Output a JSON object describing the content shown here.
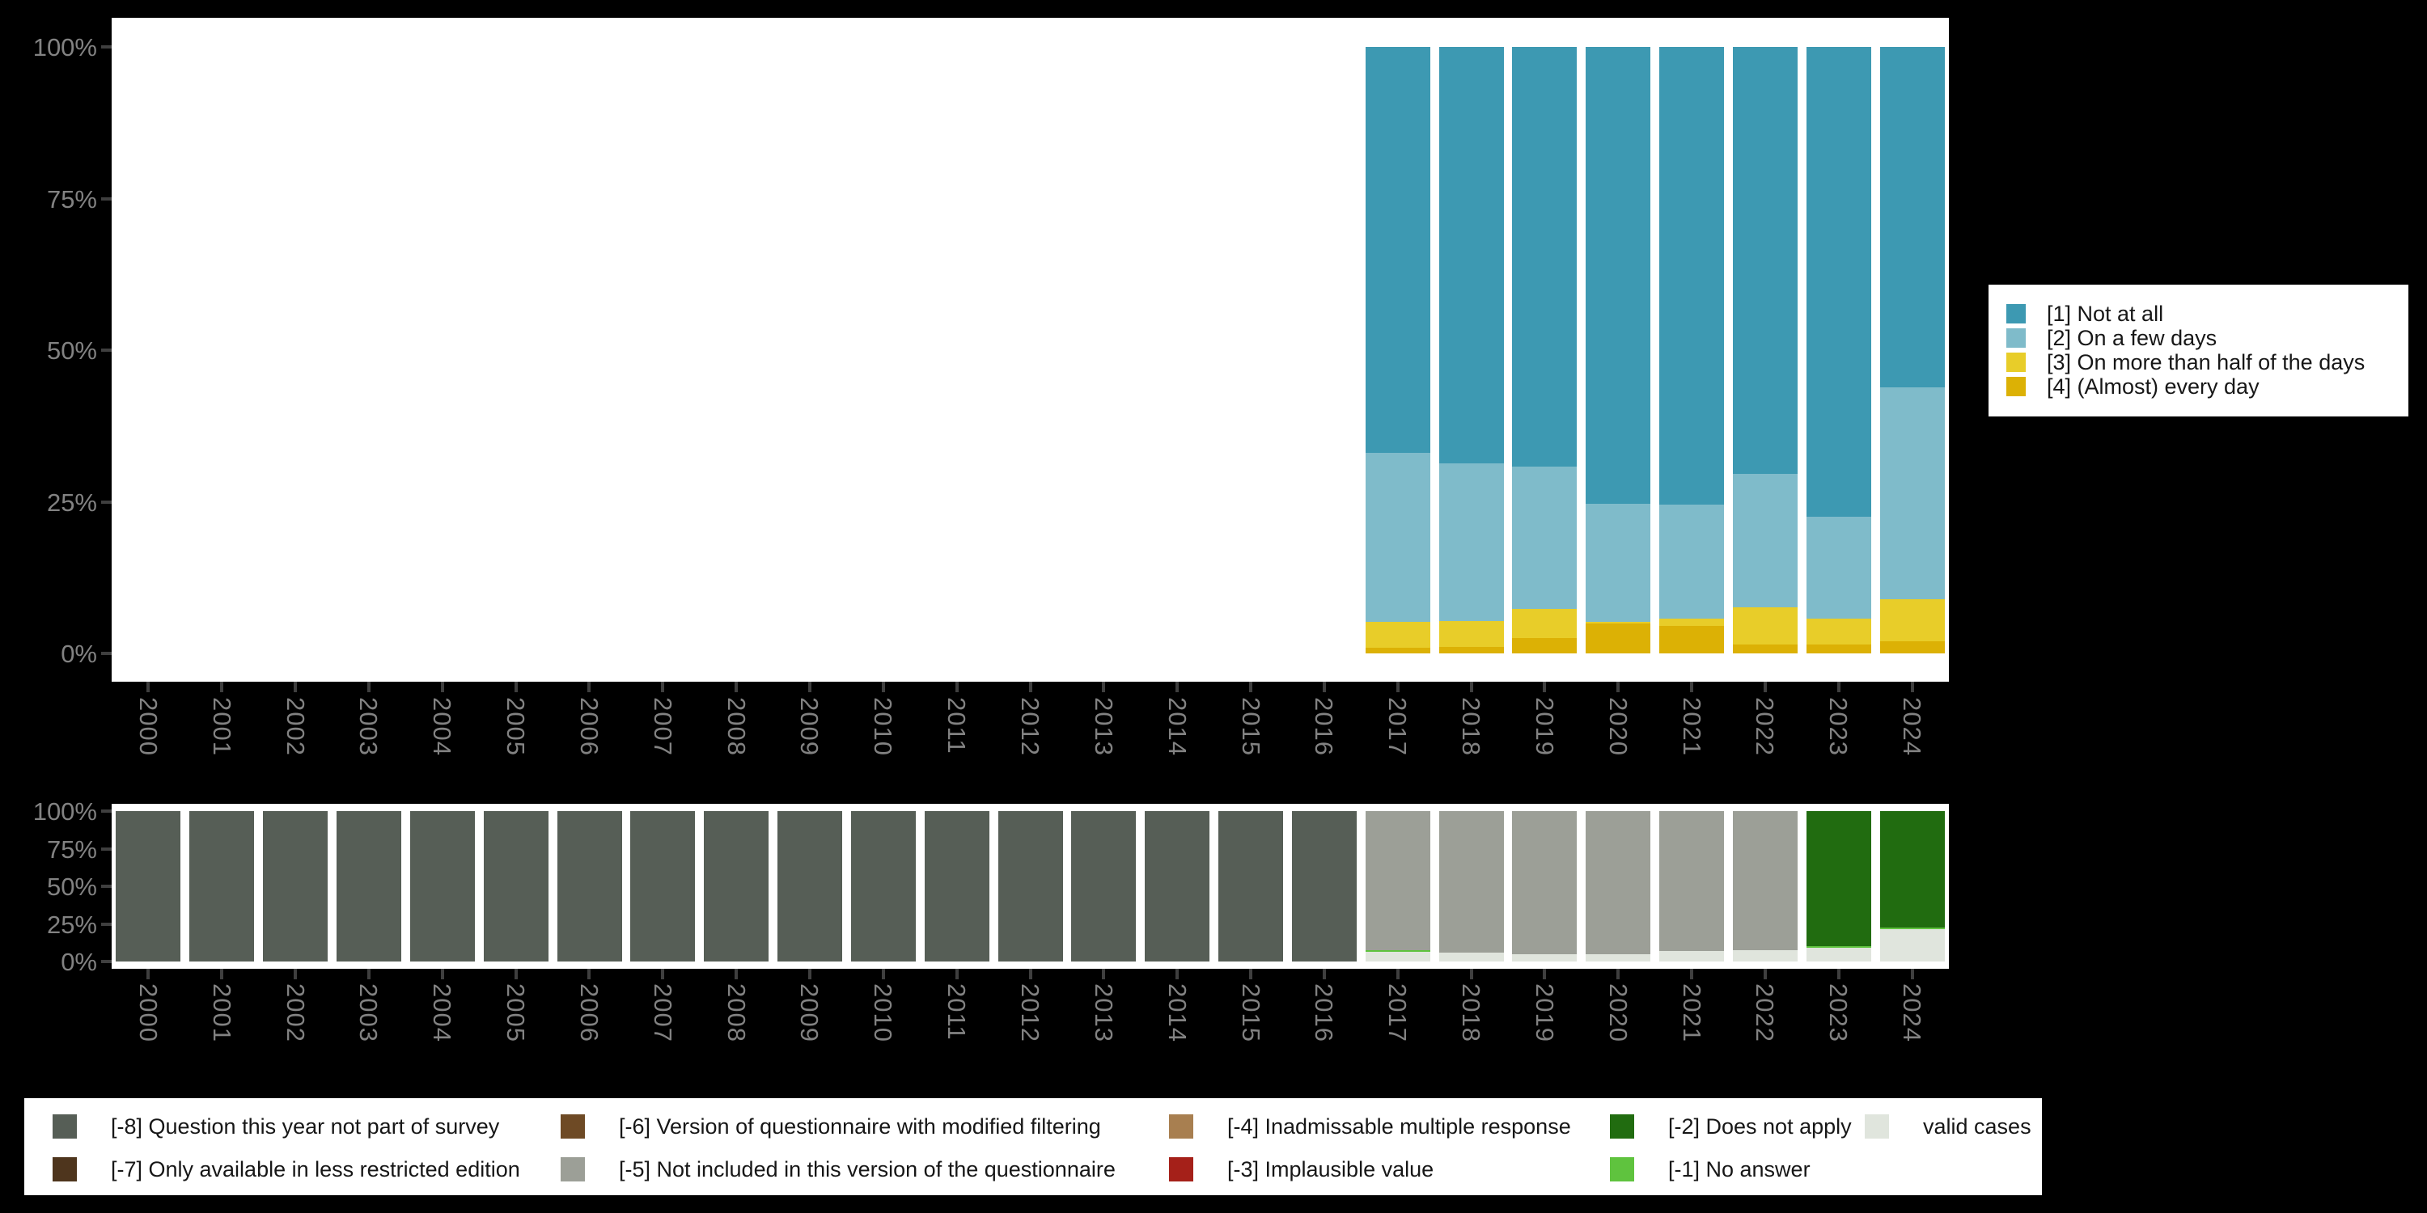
{
  "page": {
    "background": "#000000"
  },
  "years": [
    "2000",
    "2001",
    "2002",
    "2003",
    "2004",
    "2005",
    "2006",
    "2007",
    "2008",
    "2009",
    "2010",
    "2011",
    "2012",
    "2013",
    "2014",
    "2015",
    "2016",
    "2017",
    "2018",
    "2019",
    "2020",
    "2021",
    "2022",
    "2023",
    "2024"
  ],
  "y_axis_ticks": [
    "100%",
    "75%",
    "50%",
    "25%",
    "0%"
  ],
  "colors": {
    "not_at_all": "#3d99b2",
    "few_days": "#7fbbca",
    "half_days": "#e8cd29",
    "every_day": "#dcb105",
    "m8_not_part_of_survey": "#565e56",
    "m7_less_restricted": "#4e351d",
    "m6_modified_filtering": "#6e4a25",
    "m5_not_in_version": "#9c9f97",
    "m4_inadmissable": "#a87f50",
    "m3_implausible": "#a52019",
    "m2_does_not_apply": "#216c10",
    "m1_no_answer": "#5fc33e",
    "valid_cases": "#e0e5dd",
    "axis_label": "#828282",
    "tick": "#3f3f3f"
  },
  "chart_data": [
    {
      "type": "bar",
      "stacked": true,
      "title": "",
      "xlabel": "",
      "ylabel": "",
      "ylim": [
        0,
        100
      ],
      "grid": false,
      "legend_position": "right",
      "y_tick_labels": [
        "100%",
        "75%",
        "50%",
        "25%",
        "0%"
      ],
      "categories": [
        "2000",
        "2001",
        "2002",
        "2003",
        "2004",
        "2005",
        "2006",
        "2007",
        "2008",
        "2009",
        "2010",
        "2011",
        "2012",
        "2013",
        "2014",
        "2015",
        "2016",
        "2017",
        "2018",
        "2019",
        "2020",
        "2021",
        "2022",
        "2023",
        "2024"
      ],
      "series": [
        {
          "name": "[1] Not at all",
          "color": "#3d99b2",
          "values": [
            0,
            0,
            0,
            0,
            0,
            0,
            0,
            0,
            0,
            0,
            0,
            0,
            0,
            0,
            0,
            0,
            0,
            66.9,
            68.6,
            69.2,
            75.3,
            75.5,
            70.4,
            77.4,
            56.1
          ]
        },
        {
          "name": "[2] On a few days",
          "color": "#7fbbca",
          "values": [
            0,
            0,
            0,
            0,
            0,
            0,
            0,
            0,
            0,
            0,
            0,
            0,
            0,
            0,
            0,
            0,
            0,
            27.9,
            26.1,
            23.5,
            19.5,
            18.8,
            22.0,
            16.9,
            35.0
          ]
        },
        {
          "name": "[3] On more than half of the days",
          "color": "#e8cd29",
          "values": [
            0,
            0,
            0,
            0,
            0,
            0,
            0,
            0,
            0,
            0,
            0,
            0,
            0,
            0,
            0,
            0,
            0,
            4.3,
            4.2,
            4.8,
            0.2,
            1.1,
            6.1,
            4.2,
            6.9
          ]
        },
        {
          "name": "[4] (Almost) every day",
          "color": "#dcb105",
          "values": [
            0,
            0,
            0,
            0,
            0,
            0,
            0,
            0,
            0,
            0,
            0,
            0,
            0,
            0,
            0,
            0,
            0,
            0.9,
            1.1,
            2.5,
            5.0,
            4.6,
            1.5,
            1.5,
            2.0
          ]
        }
      ]
    },
    {
      "type": "bar",
      "stacked": true,
      "title": "",
      "xlabel": "",
      "ylabel": "",
      "ylim": [
        0,
        100
      ],
      "grid": false,
      "legend_position": "bottom",
      "y_tick_labels": [
        "100%",
        "75%",
        "50%",
        "25%",
        "0%"
      ],
      "categories": [
        "2000",
        "2001",
        "2002",
        "2003",
        "2004",
        "2005",
        "2006",
        "2007",
        "2008",
        "2009",
        "2010",
        "2011",
        "2012",
        "2013",
        "2014",
        "2015",
        "2016",
        "2017",
        "2018",
        "2019",
        "2020",
        "2021",
        "2022",
        "2023",
        "2024"
      ],
      "series": [
        {
          "name": "[-8] Question this year not part of survey",
          "color": "#565e56",
          "values": [
            100,
            100,
            100,
            100,
            100,
            100,
            100,
            100,
            100,
            100,
            100,
            100,
            100,
            100,
            100,
            100,
            100,
            0,
            0,
            0,
            0,
            0,
            0,
            0,
            0
          ]
        },
        {
          "name": "[-5] Not included in this version of the questionnaire",
          "color": "#9c9f97",
          "values": [
            0,
            0,
            0,
            0,
            0,
            0,
            0,
            0,
            0,
            0,
            0,
            0,
            0,
            0,
            0,
            0,
            0,
            92.3,
            94.0,
            95.0,
            95.2,
            93.2,
            92.2,
            0,
            0
          ]
        },
        {
          "name": "[-2] Does not apply",
          "color": "#216c10",
          "values": [
            0,
            0,
            0,
            0,
            0,
            0,
            0,
            0,
            0,
            0,
            0,
            0,
            0,
            0,
            0,
            0,
            0,
            0,
            0,
            0,
            0,
            0,
            0,
            89.6,
            77.2
          ]
        },
        {
          "name": "[-1] No answer",
          "color": "#5fc33e",
          "values": [
            0,
            0,
            0,
            0,
            0,
            0,
            0,
            0,
            0,
            0,
            0,
            0,
            0,
            0,
            0,
            0,
            0,
            1.0,
            0,
            0,
            0,
            0,
            0,
            1.0,
            1.3
          ]
        },
        {
          "name": "valid cases",
          "color": "#e0e5dd",
          "values": [
            0,
            0,
            0,
            0,
            0,
            0,
            0,
            0,
            0,
            0,
            0,
            0,
            0,
            0,
            0,
            0,
            0,
            6.7,
            6.0,
            5.0,
            4.8,
            6.8,
            7.8,
            9.4,
            21.5
          ]
        }
      ]
    }
  ],
  "legend_top": {
    "items": [
      {
        "label": "[1] Not at all",
        "color": "#3d99b2"
      },
      {
        "label": "[2] On a few days",
        "color": "#7fbbca"
      },
      {
        "label": "[3] On more than half of the days",
        "color": "#e8cd29"
      },
      {
        "label": "[4] (Almost) every day",
        "color": "#dcb105"
      }
    ]
  },
  "legend_bottom": {
    "rows": [
      [
        {
          "label": "[-8] Question this year not part of survey",
          "color": "#565e56"
        },
        {
          "label": "[-6] Version of questionnaire with modified filtering",
          "color": "#6e4a25"
        },
        {
          "label": "[-4] Inadmissable multiple response",
          "color": "#a87f50"
        },
        {
          "label": "[-2] Does not apply",
          "color": "#216c10"
        },
        {
          "label": "valid cases",
          "color": "#e0e5dd"
        }
      ],
      [
        {
          "label": "[-7] Only available in less restricted edition",
          "color": "#4e351d"
        },
        {
          "label": "[-5] Not included in this version of the questionnaire",
          "color": "#9c9f97"
        },
        {
          "label": "[-3] Implausible value",
          "color": "#a52019"
        },
        {
          "label": "[-1] No answer",
          "color": "#5fc33e"
        }
      ]
    ]
  }
}
